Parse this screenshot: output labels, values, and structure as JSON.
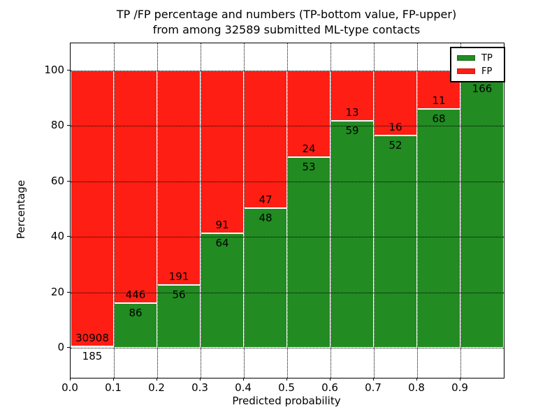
{
  "title": {
    "line1": "TP /FP percentage and numbers (TP-bottom value, FP-upper)",
    "line2": "from among 32589 submitted ML-type contacts"
  },
  "axes": {
    "xlabel": "Predicted probability",
    "ylabel": "Percentage"
  },
  "legend": {
    "items": [
      {
        "label": "TP",
        "color": "#228b22"
      },
      {
        "label": "FP",
        "color": "#ff1e14"
      }
    ]
  },
  "colors": {
    "tp": "#228b22",
    "fp": "#ff1e14",
    "background": "#ffffff",
    "text": "#000000",
    "bar_edge": "#ffffff",
    "grid": "#000000"
  },
  "chart_data": {
    "type": "bar",
    "stacked": true,
    "title": "TP /FP percentage and numbers (TP-bottom value, FP-upper)\nfrom among 32589 submitted ML-type contacts",
    "xlabel": "Predicted probability",
    "ylabel": "Percentage",
    "xlim": [
      0.0,
      1.0
    ],
    "ylim": [
      -10.8,
      109.8
    ],
    "grid": true,
    "legend_position": "upper right",
    "bin_edges": [
      0.0,
      0.1,
      0.2,
      0.3,
      0.4,
      0.5,
      0.6,
      0.7,
      0.8,
      0.9,
      1.0
    ],
    "x_tick_labels": [
      "0.0",
      "0.1",
      "0.2",
      "0.3",
      "0.4",
      "0.5",
      "0.6",
      "0.7",
      "0.8",
      "0.9"
    ],
    "y_tick_values": [
      0,
      20,
      40,
      60,
      80,
      100
    ],
    "series": [
      {
        "name": "TP",
        "color": "#228b22",
        "values": [
          185,
          86,
          56,
          64,
          48,
          53,
          59,
          52,
          68,
          166
        ]
      },
      {
        "name": "FP",
        "color": "#ff1e14",
        "values": [
          30908,
          446,
          191,
          91,
          47,
          24,
          13,
          16,
          11,
          null
        ]
      }
    ],
    "tp_percent_of_bar": [
      0.6,
      16.2,
      22.7,
      41.3,
      50.5,
      68.8,
      81.9,
      76.5,
      86.1,
      97.1
    ],
    "bar_value_labels": [
      {
        "fp": "30908",
        "tp": "185"
      },
      {
        "fp": "446",
        "tp": "86"
      },
      {
        "fp": "191",
        "tp": "56"
      },
      {
        "fp": "91",
        "tp": "64"
      },
      {
        "fp": "47",
        "tp": "48"
      },
      {
        "fp": "24",
        "tp": "53"
      },
      {
        "fp": "13",
        "tp": "59"
      },
      {
        "fp": "16",
        "tp": "52"
      },
      {
        "fp": "11",
        "tp": "68"
      },
      {
        "fp": "",
        "tp": "166"
      }
    ]
  }
}
